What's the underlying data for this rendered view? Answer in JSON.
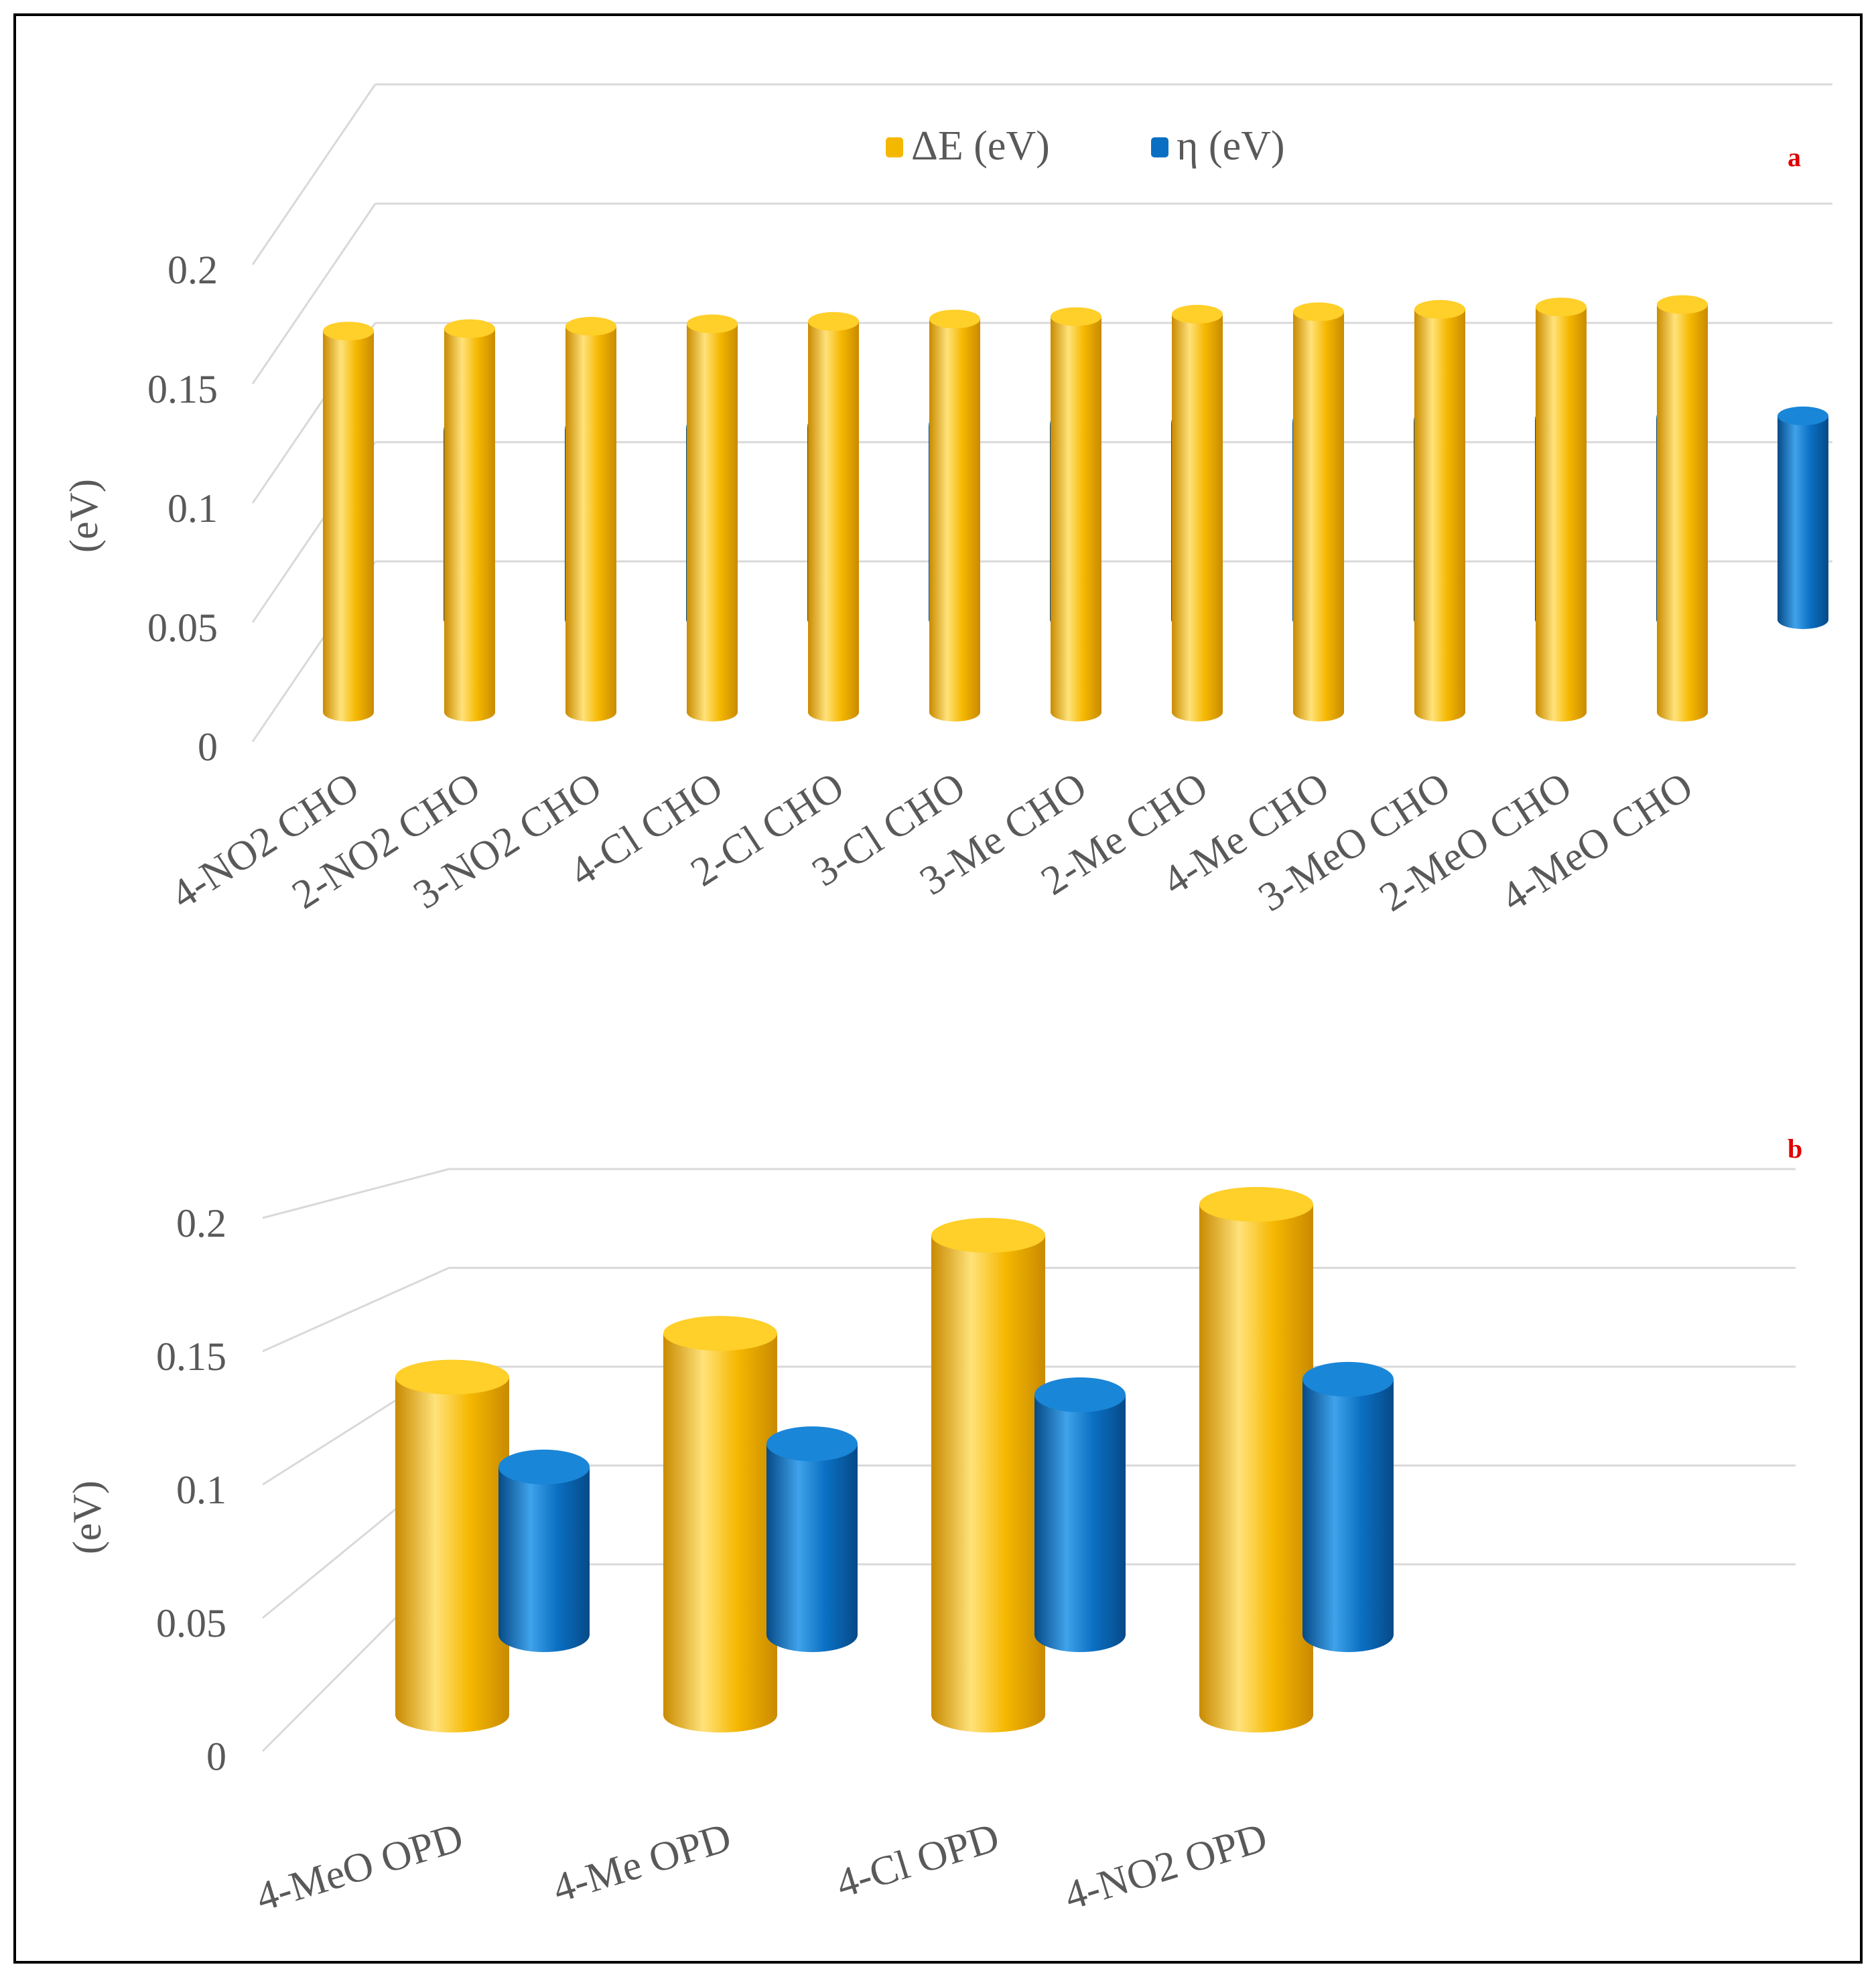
{
  "legend": [
    {
      "label": "ΔE (eV)",
      "color": "#f5b800"
    },
    {
      "label": "η (eV)",
      "color": "#0a6fc2"
    }
  ],
  "colors": {
    "series1": "#f5b800",
    "series1_dark": "#c98a00",
    "series1_light": "#ffe27a",
    "series2": "#0a6fc2",
    "series2_dark": "#064a87",
    "series2_light": "#3fa2ea",
    "panel_label": "#e00000",
    "axis_text": "#595959",
    "grid": "#d9d9d9",
    "frame": "#000000"
  },
  "chart_data": [
    {
      "type": "bar",
      "panel_label": "a",
      "title": "",
      "xlabel": "",
      "ylabel": "(eV)",
      "ylim": [
        0,
        0.2
      ],
      "yticks": [
        "0",
        "0.05",
        "0.1",
        "0.15",
        "0.2"
      ],
      "categories": [
        "4-NO2 CHO",
        "2-NO2 CHO",
        "3-NO2 CHO",
        "4-Cl CHO",
        "2-Cl CHO",
        "3-Cl CHO",
        "3-Me CHO",
        "2-Me CHO",
        "4-Me CHO",
        "3-MeO CHO",
        "2-MeO CHO",
        "4-MeO CHO"
      ],
      "series": [
        {
          "name": "ΔE (eV)",
          "values": [
            0.158,
            0.159,
            0.16,
            0.161,
            0.162,
            0.163,
            0.164,
            0.165,
            0.166,
            0.167,
            0.168,
            0.169
          ]
        },
        {
          "name": "η (eV)",
          "values": [
            0.079,
            0.0795,
            0.08,
            0.0805,
            0.081,
            0.0815,
            0.082,
            0.0825,
            0.083,
            0.0835,
            0.084,
            0.0845
          ]
        }
      ],
      "legend_position": "top"
    },
    {
      "type": "bar",
      "panel_label": "b",
      "title": "",
      "xlabel": "",
      "ylabel": "(eV)",
      "ylim": [
        0,
        0.2
      ],
      "yticks": [
        "0",
        "0.05",
        "0.1",
        "0.15",
        "0.2"
      ],
      "categories": [
        "4-MeO OPD",
        "4-Me OPD",
        "4-Cl OPD",
        "4-NO2 OPD"
      ],
      "series": [
        {
          "name": "ΔE (eV)",
          "values": [
            0.131,
            0.148,
            0.186,
            0.198
          ]
        },
        {
          "name": "η (eV)",
          "values": [
            0.065,
            0.074,
            0.093,
            0.099
          ]
        }
      ]
    }
  ]
}
